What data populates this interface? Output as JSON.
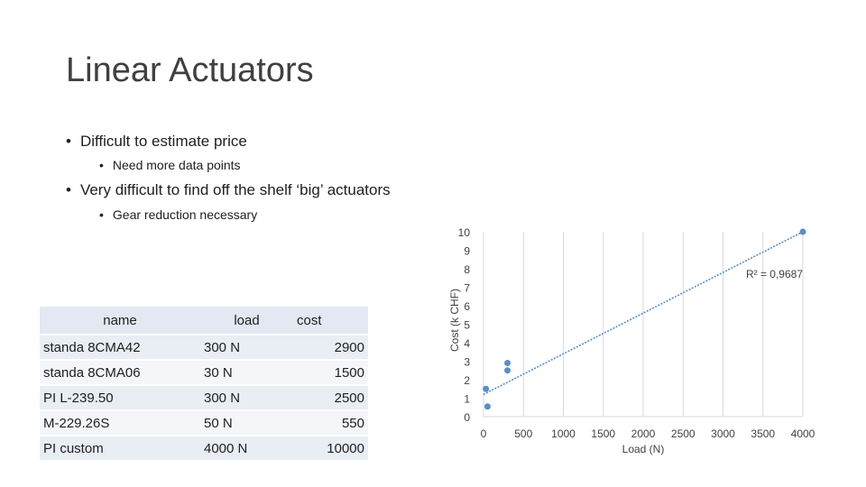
{
  "slide": {
    "title": "Linear Actuators",
    "bullets": [
      {
        "text": "Difficult to estimate price",
        "sub": "Need more data points"
      },
      {
        "text": "Very difficult to find off the shelf ‘big’ actuators",
        "sub": "Gear reduction necessary"
      }
    ]
  },
  "table": {
    "headers": {
      "name": "name",
      "load": "load",
      "cost": "cost"
    },
    "rows": [
      {
        "name": "standa 8CMA42",
        "load": "300 N",
        "cost": "2900"
      },
      {
        "name": "standa 8CMA06",
        "load": "30 N",
        "cost": "1500"
      },
      {
        "name": "PI L-239.50",
        "load": "300 N",
        "cost": "2500"
      },
      {
        "name": "M-229.26S",
        "load": "50 N",
        "cost": "550"
      },
      {
        "name": "PI custom",
        "load": "4000 N",
        "cost": "10000"
      }
    ]
  },
  "chart_data": {
    "type": "scatter",
    "title": "",
    "xlabel": "Load (N)",
    "ylabel": "Cost (k CHF)",
    "xlim": [
      0,
      4000
    ],
    "ylim": [
      0,
      10
    ],
    "xticks": [
      0,
      500,
      1000,
      1500,
      2000,
      2500,
      3000,
      3500,
      4000
    ],
    "yticks": [
      0,
      1,
      2,
      3,
      4,
      5,
      6,
      7,
      8,
      9,
      10
    ],
    "grid": "vertical",
    "points": [
      {
        "x": 300,
        "y": 2.9
      },
      {
        "x": 30,
        "y": 1.5
      },
      {
        "x": 300,
        "y": 2.5
      },
      {
        "x": 50,
        "y": 0.55
      },
      {
        "x": 4000,
        "y": 10
      }
    ],
    "trendline": {
      "type": "linear",
      "from": [
        0,
        1.2
      ],
      "to": [
        4000,
        10
      ]
    },
    "annotation": "R² = 0,9687",
    "marker_color": "#5b8ec4",
    "trend_color": "#5b8ec4"
  }
}
